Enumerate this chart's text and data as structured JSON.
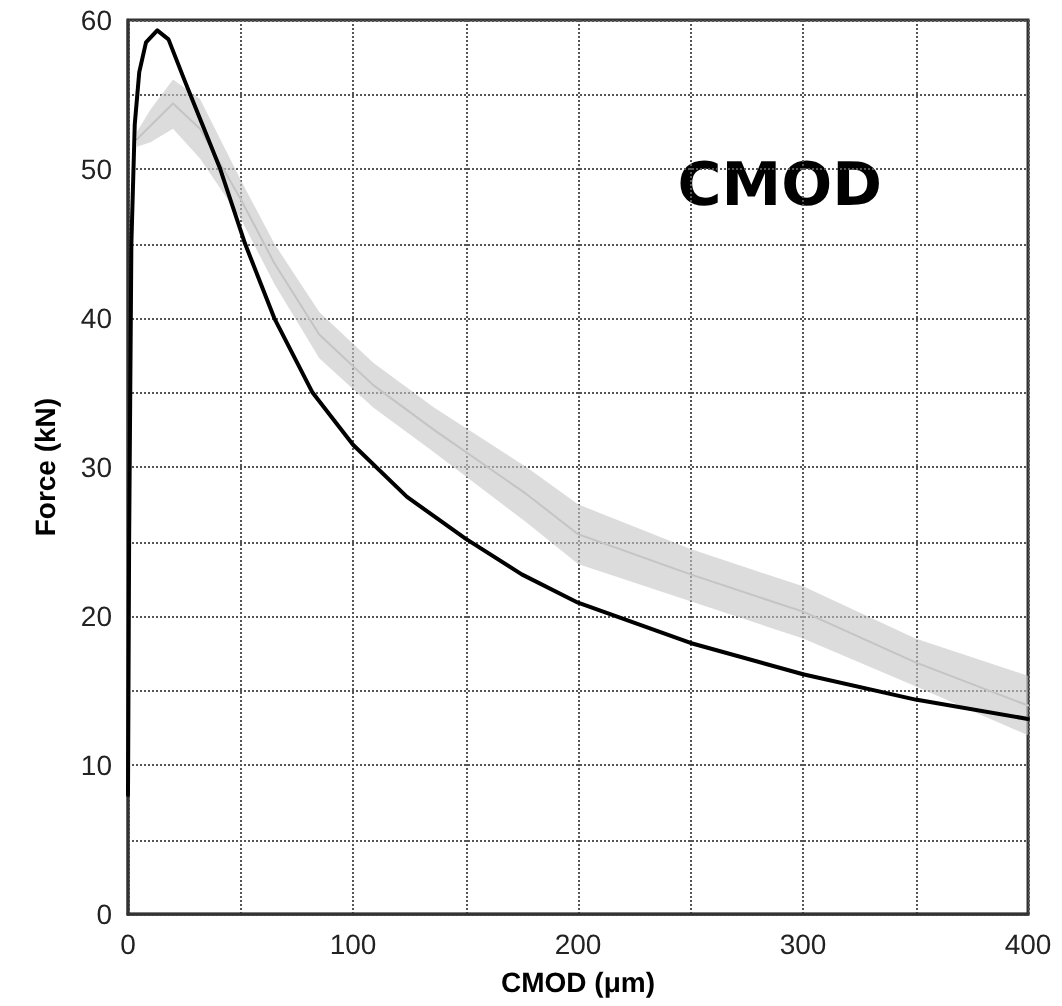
{
  "chart_data": {
    "type": "line",
    "xlabel": "CMOD (μm)",
    "ylabel": "Force (kN)",
    "annotations": [
      "CMOD"
    ],
    "xlim": [
      0,
      400
    ],
    "ylim": [
      0,
      60
    ],
    "xticks": [
      0,
      {
        "value": 50,
        "label": null
      },
      100,
      {
        "value": 150,
        "label": null
      },
      200,
      {
        "value": 250,
        "label": null
      },
      300,
      {
        "value": 350,
        "label": null
      },
      400
    ],
    "yticks": [
      0,
      {
        "value": 5,
        "label": null
      },
      10,
      {
        "value": 15,
        "label": null
      },
      20,
      {
        "value": 25,
        "label": null
      },
      30,
      {
        "value": 35,
        "label": null
      },
      40,
      {
        "value": 45,
        "label": null
      },
      50,
      {
        "value": 55,
        "label": null
      },
      60
    ],
    "grid": true,
    "marker": "none",
    "line_style": "solid",
    "series": [
      {
        "color": "#c4c4c4",
        "x": [
          4,
          10,
          20,
          32,
          50,
          65,
          85,
          109,
          136,
          177,
          200,
          250,
          300,
          350,
          400
        ],
        "values": [
          52,
          52.9,
          54.4,
          52.7,
          48,
          43.7,
          38.9,
          35.5,
          32.5,
          28.2,
          25.5,
          22.8,
          20.3,
          16.9,
          14
        ],
        "lower": [
          51.5,
          51.8,
          52.7,
          50.7,
          46.7,
          42.3,
          37.3,
          34,
          31,
          26.3,
          23.5,
          21,
          18.5,
          15.3,
          12
        ],
        "upper": [
          52.5,
          54,
          56,
          54.7,
          49.3,
          45,
          40.4,
          37,
          34,
          30,
          27.5,
          24.5,
          22,
          18.5,
          16
        ]
      },
      {
        "color": "#000000",
        "x": [
          0,
          0.5,
          1.5,
          3,
          5,
          8,
          13,
          18,
          25,
          33,
          41,
          52,
          65,
          82,
          100,
          124,
          150,
          175,
          200,
          250,
          300,
          350,
          400
        ],
        "values": [
          8,
          25,
          45,
          53,
          56.5,
          58.5,
          59.3,
          58.7,
          56,
          53,
          50,
          45,
          40,
          35,
          31.5,
          28,
          25.2,
          22.8,
          20.9,
          18.2,
          16.1,
          14.4,
          13.1
        ]
      }
    ]
  }
}
